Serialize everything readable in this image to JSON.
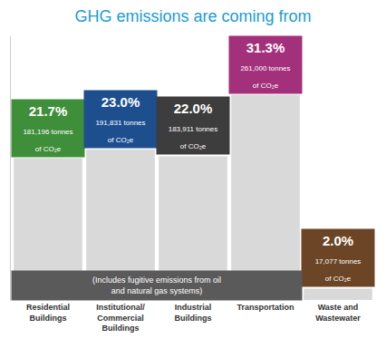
{
  "chart_data": {
    "type": "bar",
    "title": "GHG emissions are coming from",
    "categories": [
      "Residential Buildings",
      "Institutional/Commercial Buildings",
      "Industrial Buildings",
      "Transportation",
      "Waste and Wastewater"
    ],
    "values": [
      21.7,
      23.0,
      22.0,
      31.3,
      2.0
    ],
    "value_labels": [
      "21.7%",
      "23.0%",
      "22.0%",
      "31.3%",
      "2.0%"
    ],
    "tonnes_labels": [
      "181,196 tonnes of CO₂e",
      "191,831 tonnes of CO₂e",
      "183,911 tonnes of CO₂e",
      "261,000 tonnes of CO₂e",
      "17,077 tonnes of CO₂e"
    ],
    "colors": [
      "#3f8f3a",
      "#1d4f8f",
      "#3d3d3d",
      "#a3307a",
      "#6b4526"
    ],
    "annotations": [
      "(Includes fugitive emissions from oil and natural gas systems)"
    ],
    "ylim": [
      0,
      40
    ],
    "data_labels": true,
    "tick_labels": "x",
    "grid": false
  }
}
